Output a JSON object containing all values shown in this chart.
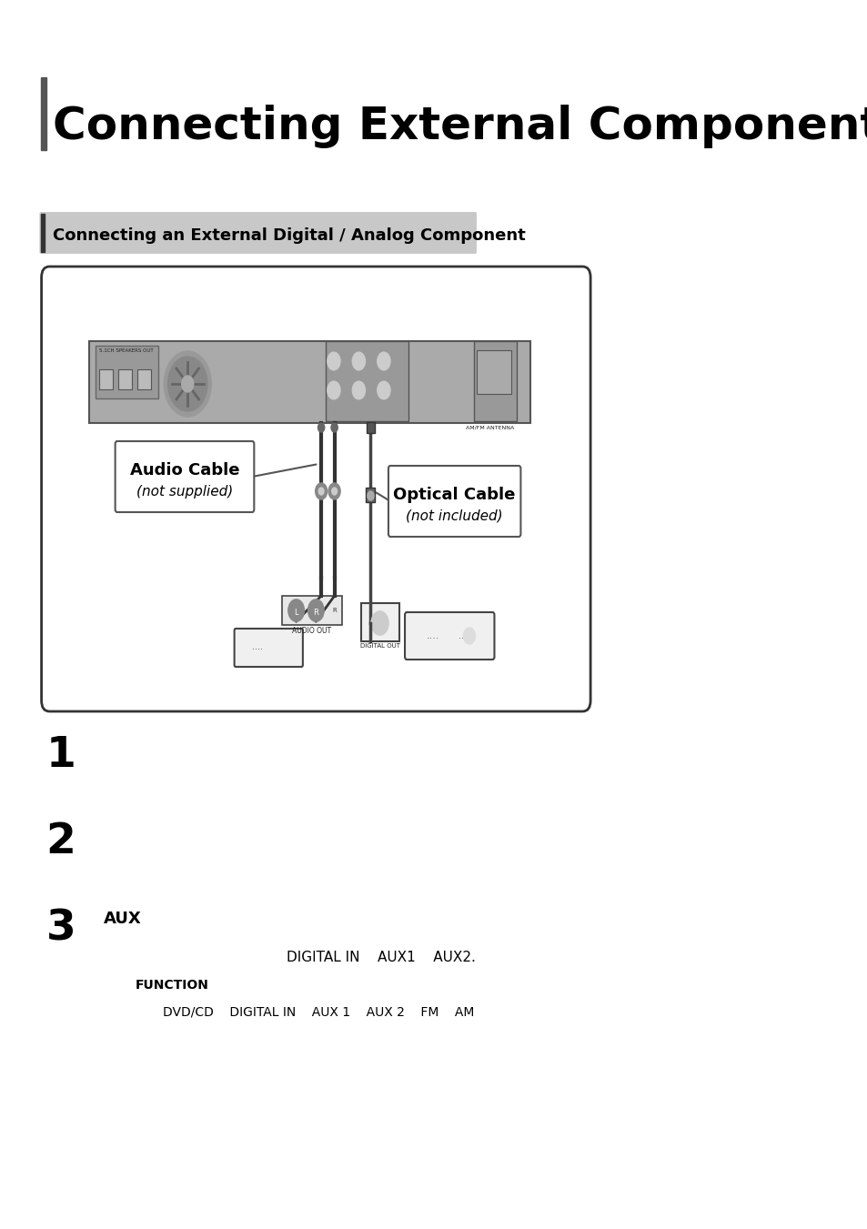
{
  "title": "Connecting External Components",
  "section_title": "Connecting an External Digital / Analog Component",
  "step1_num": "1",
  "step2_num": "2",
  "step3_num": "3",
  "step3_text": "AUX",
  "line1": "DIGITAL IN    AUX1    AUX2.",
  "line2_bold": "FUNCTION",
  "line3": "DVD/CD    DIGITAL IN    AUX 1    AUX 2    FM    AM",
  "bg_color": "#ffffff",
  "title_color": "#000000",
  "section_bg": "#c8c8c8",
  "section_text_color": "#000000",
  "accent_bar_color": "#555555",
  "diagram_border_color": "#333333",
  "diagram_bg": "#ffffff"
}
